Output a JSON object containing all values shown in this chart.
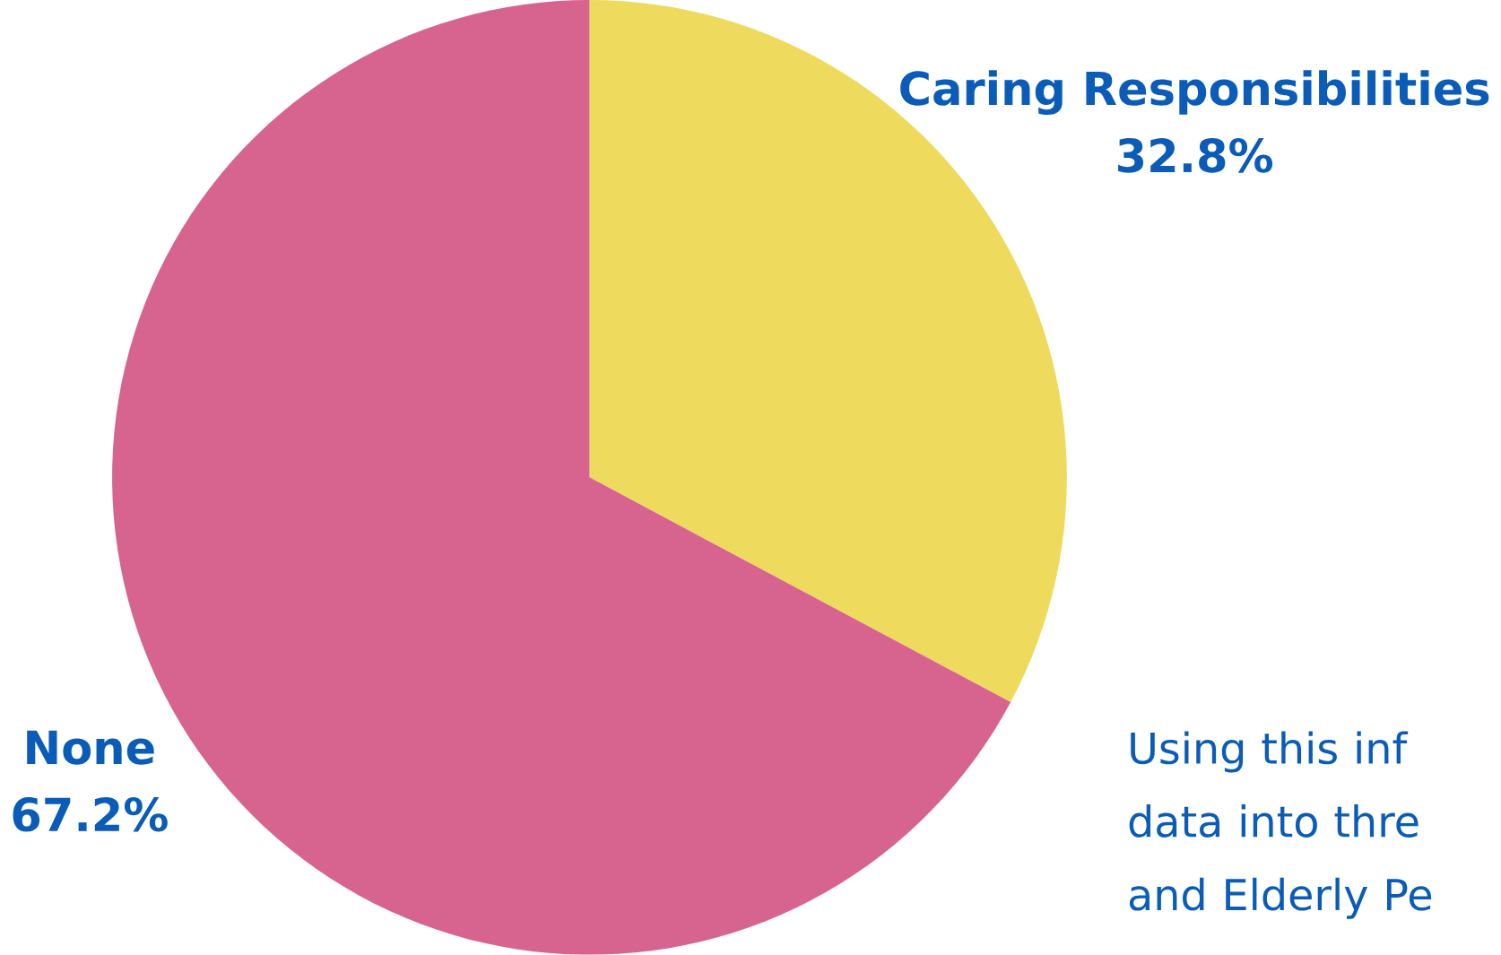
{
  "chart_data": {
    "type": "pie",
    "categories": [
      "Caring Responsibilities",
      "None"
    ],
    "values": [
      32.8,
      67.2
    ],
    "value_labels": [
      "32.8%",
      "67.2%"
    ],
    "colors": [
      "#eeda5c",
      "#d6648f"
    ],
    "annotations": [
      "Using this inf data into thre and Elderly Pe"
    ]
  }
}
